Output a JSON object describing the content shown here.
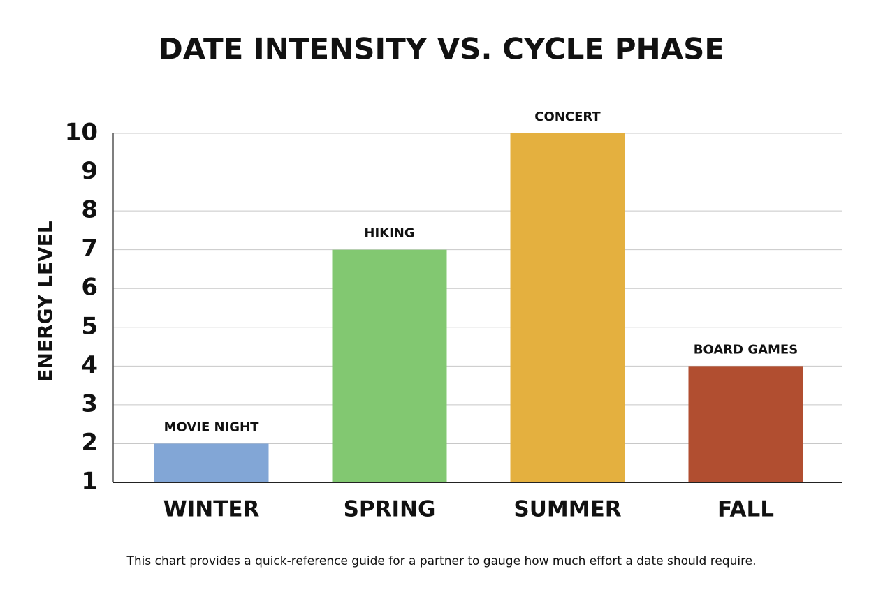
{
  "chart_data": {
    "type": "bar",
    "title": "DATE INTENSITY VS. CYCLE PHASE",
    "y_label": "ENERGY LEVEL",
    "categories": [
      "WINTER",
      "SPRING",
      "SUMMER",
      "FALL"
    ],
    "values": [
      2,
      7,
      10,
      4
    ],
    "annotations": [
      "MOVIE NIGHT",
      "HIKING",
      "CONCERT",
      "BOARD GAMES"
    ],
    "colors": [
      "#82a6d6",
      "#82c871",
      "#e4b03f",
      "#b14e30"
    ],
    "ylim": [
      1,
      10
    ],
    "yticks": [
      1,
      2,
      3,
      4,
      5,
      6,
      7,
      8,
      9,
      10
    ],
    "grid": true,
    "caption": "This chart provides a quick-reference guide for a partner to gauge how much effort a date should require."
  }
}
